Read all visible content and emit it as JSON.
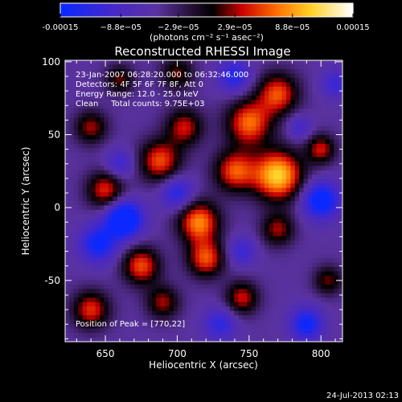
{
  "chart_data": {
    "type": "heatmap",
    "title": "Reconstructed RHESSI Image",
    "xlabel": "Heliocentric X (arcsec)",
    "ylabel": "Heliocentric Y (arcsec)",
    "xlim": [
      622,
      815
    ],
    "ylim": [
      -92,
      101
    ],
    "x_ticks": [
      650,
      700,
      750,
      800
    ],
    "y_ticks": [
      -50,
      0,
      50,
      100
    ],
    "x_tick_labels": [
      "650",
      "700",
      "750",
      "800"
    ],
    "y_tick_labels": [
      "-50",
      "0",
      "50",
      "100"
    ],
    "colorbar": {
      "range": [
        -0.00015,
        0.00015
      ],
      "tick_values": [
        -0.00015,
        -8.8e-05,
        -2.9e-05,
        2.9e-05,
        8.8e-05,
        0.00015
      ],
      "tick_labels": [
        "-0.00015",
        "−8.8e−05",
        "−2.9e−05",
        "2.9e−05",
        "8.8e−05",
        "0.00015"
      ],
      "units": "(photons cm⁻² s⁻¹ asec⁻²)"
    },
    "info_lines": [
      "23-Jan-2007 06:28:20.000 to 06:32:46.000",
      "Detectors: 4F 5F 6F 7F 8F, Att 0",
      "Energy Range: 12.0 - 25.0 keV",
      "Clean     Total counts: 9.75E+03"
    ],
    "peak_label": "Position of Peak = [770,22]",
    "peak": [
      770,
      22
    ],
    "blobs": [
      {
        "x": 770,
        "y": 22,
        "v": 0.00015,
        "s": 12
      },
      {
        "x": 750,
        "y": 58,
        "v": 0.00011,
        "s": 11
      },
      {
        "x": 770,
        "y": 78,
        "v": 0.0001,
        "s": 10
      },
      {
        "x": 740,
        "y": 25,
        "v": 0.0001,
        "s": 10
      },
      {
        "x": 715,
        "y": -10,
        "v": 0.00012,
        "s": 10
      },
      {
        "x": 720,
        "y": -35,
        "v": 0.0001,
        "s": 9
      },
      {
        "x": 688,
        "y": 32,
        "v": 0.0001,
        "s": 10
      },
      {
        "x": 705,
        "y": 55,
        "v": 8e-05,
        "s": 9
      },
      {
        "x": 650,
        "y": 12,
        "v": 9e-05,
        "s": 9
      },
      {
        "x": 640,
        "y": 55,
        "v": 7e-05,
        "s": 8
      },
      {
        "x": 675,
        "y": -40,
        "v": 0.0001,
        "s": 9
      },
      {
        "x": 640,
        "y": -70,
        "v": 9e-05,
        "s": 9
      },
      {
        "x": 690,
        "y": -65,
        "v": 7e-05,
        "s": 8
      },
      {
        "x": 745,
        "y": -62,
        "v": 8e-05,
        "s": 8
      },
      {
        "x": 770,
        "y": -15,
        "v": 7e-05,
        "s": 8
      },
      {
        "x": 800,
        "y": 40,
        "v": 8e-05,
        "s": 7
      },
      {
        "x": 805,
        "y": -50,
        "v": 6e-05,
        "s": 7
      },
      {
        "x": 700,
        "y": 92,
        "v": 6e-05,
        "s": 8
      },
      {
        "x": 660,
        "y": 88,
        "v": 6e-05,
        "s": 7
      },
      {
        "x": 663,
        "y": -8,
        "v": -0.00015,
        "s": 9
      },
      {
        "x": 645,
        "y": -25,
        "v": -0.0001,
        "s": 9
      },
      {
        "x": 800,
        "y": 5,
        "v": -0.00012,
        "s": 9
      },
      {
        "x": 790,
        "y": -80,
        "v": -0.0001,
        "s": 8
      },
      {
        "x": 730,
        "y": -80,
        "v": -7e-05,
        "s": 8
      },
      {
        "x": 700,
        "y": 10,
        "v": -8e-05,
        "s": 8
      },
      {
        "x": 740,
        "y": 90,
        "v": -8e-05,
        "s": 8
      },
      {
        "x": 660,
        "y": 30,
        "v": -6e-05,
        "s": 7
      },
      {
        "x": 810,
        "y": 85,
        "v": -6e-05,
        "s": 7
      },
      {
        "x": 785,
        "y": 55,
        "v": -5e-05,
        "s": 6
      },
      {
        "x": 745,
        "y": -30,
        "v": -6e-05,
        "s": 7
      }
    ]
  },
  "footer": {
    "timestamp": "24-Jul-2013 02:13"
  }
}
